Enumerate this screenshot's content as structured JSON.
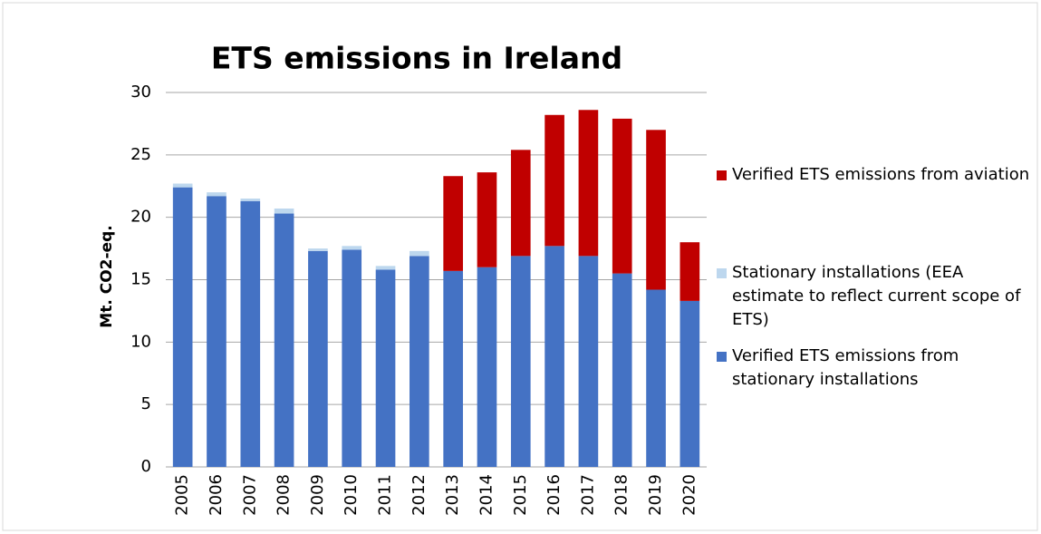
{
  "chart_data": {
    "type": "stacked_bar",
    "title": "ETS emissions in Ireland",
    "y_label": "Mt. CO2-eq.",
    "categories": [
      "2005",
      "2006",
      "2007",
      "2008",
      "2009",
      "2010",
      "2011",
      "2012",
      "2013",
      "2014",
      "2015",
      "2016",
      "2017",
      "2018",
      "2019",
      "2020"
    ],
    "series": [
      {
        "name": "Verified ETS emissions from stationary installations",
        "color": "#4472c4",
        "values": [
          22.4,
          21.7,
          21.3,
          20.3,
          17.3,
          17.4,
          15.8,
          16.9,
          15.7,
          16.0,
          16.9,
          17.7,
          16.9,
          15.5,
          14.2,
          13.3
        ]
      },
      {
        "name": "Stationary installations (EEA estimate to reflect current scope of ETS)",
        "color": "#bdd7ee",
        "values": [
          0.3,
          0.3,
          0.2,
          0.4,
          0.2,
          0.3,
          0.3,
          0.4,
          null,
          null,
          null,
          null,
          null,
          null,
          null,
          null
        ]
      },
      {
        "name": "Verified ETS emissions from aviation",
        "color": "#c00000",
        "values": [
          null,
          null,
          null,
          null,
          null,
          null,
          null,
          null,
          7.6,
          7.6,
          8.5,
          10.5,
          11.7,
          12.4,
          12.8,
          4.7
        ]
      }
    ],
    "legend_order": [
      2,
      1,
      0
    ],
    "ylim": [
      0,
      30
    ],
    "yticks": [
      0,
      5,
      10,
      15,
      20,
      25,
      30
    ],
    "grid": true,
    "legend": "right"
  }
}
